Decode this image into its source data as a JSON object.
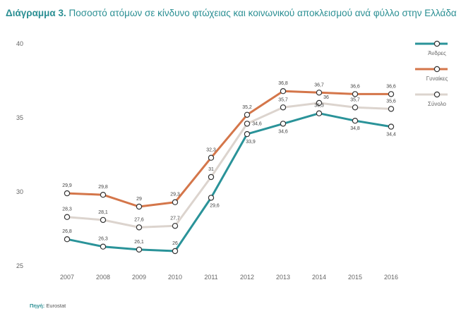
{
  "title_prefix": "Διάγραμμα 3.",
  "title_rest": " Ποσοστό ατόμων σε κίνδυνο φτώχειας και κοινωνικού αποκλεισμού ανά φύλλο στην Ελλάδα",
  "source_label": "Πηγή:",
  "source_value": " Eurostat",
  "chart_data": {
    "type": "line",
    "title": "Διάγραμμα 3. Ποσοστό ατόμων σε κίνδυνο φτώχειας και κοινωνικού αποκλεισμού ανά φύλλο στην Ελλάδα",
    "categories": [
      "2007",
      "2008",
      "2009",
      "2010",
      "2011",
      "2012",
      "2013",
      "2014",
      "2015",
      "2016"
    ],
    "ylim": [
      25,
      40
    ],
    "yticks": [
      25,
      30,
      35,
      40
    ],
    "grid": false,
    "legend": "right",
    "series": [
      {
        "name": "Άνδρες",
        "color": "#2a9399",
        "values": [
          26.8,
          26.3,
          26.1,
          26,
          29.6,
          33.9,
          34.6,
          35.3,
          34.8,
          34.4
        ],
        "labels": [
          "26,8",
          "26,3",
          "26,1",
          "26",
          "29,6",
          "33,9",
          "34,6",
          "35,3",
          "34,8",
          "34,4"
        ]
      },
      {
        "name": "Γυναίκες",
        "color": "#d4764a",
        "values": [
          29.9,
          29.8,
          29,
          29.3,
          32.3,
          35.2,
          36.8,
          36.7,
          36.6,
          36.6
        ],
        "labels": [
          "29,9",
          "29,8",
          "29",
          "29,3",
          "32,3",
          "35,2",
          "36,8",
          "36,7",
          "36,6",
          "36,6"
        ]
      },
      {
        "name": "Σύνολο",
        "color": "#dcd4ce",
        "values": [
          28.3,
          28.1,
          27.6,
          27.7,
          31,
          34.6,
          35.7,
          36,
          35.7,
          35.6
        ],
        "labels": [
          "28,3",
          "28,1",
          "27,6",
          "27,7",
          "31",
          "34,6",
          "35,7",
          "36",
          "35,7",
          "35,6"
        ]
      }
    ]
  }
}
